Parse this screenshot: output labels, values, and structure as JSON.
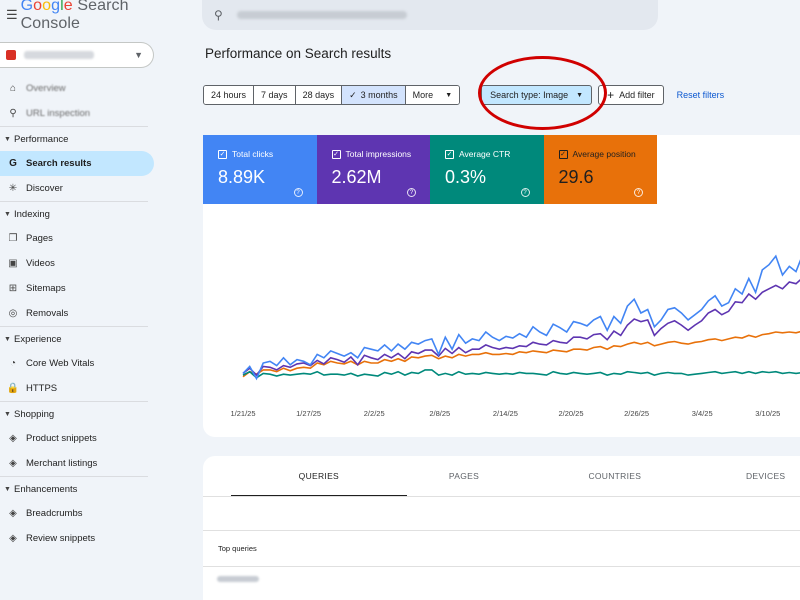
{
  "app": {
    "name_parts": [
      "G",
      "o",
      "o",
      "g",
      "l",
      "e"
    ],
    "name_rest": " Search Console",
    "brand_colors": [
      "#4285f4",
      "#ea4335",
      "#fbbc05",
      "#4285f4",
      "#34a853",
      "#ea4335"
    ]
  },
  "sidebar": {
    "items_top": [
      {
        "label": "Overview",
        "icon": "home-icon"
      },
      {
        "label": "URL inspection",
        "icon": "search-icon"
      }
    ],
    "sections": [
      {
        "label": "Performance",
        "items": [
          {
            "label": "Search results",
            "icon": "google-g-icon",
            "active": true
          },
          {
            "label": "Discover",
            "icon": "asterisk-icon"
          }
        ]
      },
      {
        "label": "Indexing",
        "items": [
          {
            "label": "Pages",
            "icon": "pages-icon"
          },
          {
            "label": "Videos",
            "icon": "video-icon"
          },
          {
            "label": "Sitemaps",
            "icon": "sitemap-icon"
          },
          {
            "label": "Removals",
            "icon": "eye-off-icon"
          }
        ]
      },
      {
        "label": "Experience",
        "items": [
          {
            "label": "Core Web Vitals",
            "icon": "gauge-icon"
          },
          {
            "label": "HTTPS",
            "icon": "lock-icon"
          }
        ]
      },
      {
        "label": "Shopping",
        "items": [
          {
            "label": "Product snippets",
            "icon": "diamond-icon"
          },
          {
            "label": "Merchant listings",
            "icon": "diamond-icon"
          }
        ]
      },
      {
        "label": "Enhancements",
        "items": [
          {
            "label": "Breadcrumbs",
            "icon": "diamond-icon"
          },
          {
            "label": "Review snippets",
            "icon": "diamond-icon"
          }
        ]
      }
    ]
  },
  "page": {
    "title": "Performance on Search results"
  },
  "filters": {
    "ranges": [
      "24 hours",
      "7 days",
      "28 days",
      "3 months"
    ],
    "selected_range": "3 months",
    "more": "More",
    "search_type": "Search type: Image",
    "add_filter": "Add filter",
    "reset": "Reset filters"
  },
  "metrics": [
    {
      "label": "Total clicks",
      "value": "8.89K",
      "color": "#4285f4"
    },
    {
      "label": "Total impressions",
      "value": "2.62M",
      "color": "#5e35b1"
    },
    {
      "label": "Average CTR",
      "value": "0.3%",
      "color": "#00897b"
    },
    {
      "label": "Average position",
      "value": "29.6",
      "color": "#e8710a"
    }
  ],
  "chart_data": {
    "type": "line",
    "x_ticks": [
      "1/21/25",
      "1/27/25",
      "2/2/25",
      "2/8/25",
      "2/14/25",
      "2/20/25",
      "2/26/25",
      "3/4/25",
      "3/10/25"
    ],
    "grid": false,
    "series": [
      {
        "name": "Total clicks",
        "color": "#4285f4",
        "values": [
          10,
          18,
          4,
          22,
          24,
          19,
          28,
          20,
          26,
          24,
          20,
          32,
          28,
          36,
          33,
          30,
          34,
          28,
          40,
          38,
          36,
          43,
          36,
          44,
          38,
          46,
          44,
          48,
          50,
          32,
          52,
          38,
          55,
          45,
          50,
          48,
          58,
          52,
          48,
          53,
          51,
          56,
          52,
          64,
          58,
          54,
          67,
          63,
          58,
          70,
          68,
          65,
          72,
          76,
          60,
          76,
          68,
          88,
          96,
          80,
          84,
          64,
          72,
          84,
          86,
          80,
          72,
          78,
          84,
          94,
          100,
          88,
          92,
          108,
          102,
          120,
          104,
          130,
          136,
          146,
          124,
          134,
          128,
          148,
          158,
          146,
          138
        ]
      },
      {
        "name": "Total impressions",
        "color": "#5e35b1",
        "values": [
          10,
          16,
          8,
          18,
          17,
          14,
          19,
          17,
          21,
          22,
          19,
          25,
          21,
          28,
          26,
          23,
          29,
          20,
          31,
          28,
          26,
          32,
          28,
          33,
          27,
          35,
          33,
          37,
          37,
          30,
          39,
          33,
          40,
          34,
          38,
          38,
          43,
          40,
          38,
          40,
          39,
          42,
          41,
          46,
          44,
          43,
          48,
          46,
          45,
          52,
          52,
          50,
          55,
          56,
          49,
          59,
          54,
          66,
          73,
          70,
          72,
          54,
          62,
          68,
          71,
          66,
          60,
          66,
          71,
          80,
          84,
          78,
          82,
          93,
          92,
          102,
          96,
          104,
          108,
          112,
          108,
          116,
          114,
          121,
          122,
          116,
          112
        ]
      },
      {
        "name": "Average CTR",
        "color": "#00897b",
        "values": [
          8,
          12,
          5,
          10,
          9,
          7,
          9,
          8,
          9,
          10,
          9,
          12,
          8,
          9,
          9,
          8,
          10,
          7,
          9,
          8,
          7,
          11,
          9,
          12,
          8,
          11,
          10,
          14,
          14,
          8,
          10,
          8,
          12,
          9,
          10,
          9,
          11,
          10,
          9,
          10,
          9,
          11,
          10,
          10,
          9,
          8,
          12,
          10,
          9,
          11,
          10,
          9,
          10,
          11,
          8,
          10,
          9,
          12,
          11,
          10,
          11,
          8,
          10,
          11,
          10,
          10,
          8,
          9,
          10,
          11,
          12,
          10,
          11,
          12,
          10,
          12,
          10,
          12,
          11,
          12,
          10,
          11,
          10,
          11,
          10,
          10,
          10
        ]
      },
      {
        "name": "Average position",
        "color": "#e8710a",
        "values": [
          6,
          12,
          9,
          14,
          14,
          12,
          16,
          13,
          16,
          17,
          16,
          22,
          20,
          24,
          22,
          21,
          24,
          20,
          24,
          22,
          22,
          26,
          24,
          27,
          24,
          29,
          28,
          30,
          31,
          27,
          30,
          28,
          32,
          30,
          32,
          32,
          34,
          32,
          32,
          33,
          32,
          35,
          34,
          36,
          35,
          34,
          37,
          36,
          35,
          38,
          38,
          37,
          40,
          41,
          38,
          42,
          41,
          44,
          46,
          44,
          46,
          42,
          44,
          46,
          47,
          45,
          44,
          46,
          47,
          49,
          50,
          48,
          50,
          52,
          51,
          54,
          52,
          55,
          56,
          58,
          57,
          58,
          57,
          59,
          60,
          59,
          58
        ]
      }
    ],
    "ylim": [
      0,
      160
    ]
  },
  "tabs": [
    "QUERIES",
    "PAGES",
    "COUNTRIES",
    "DEVICES"
  ],
  "table": {
    "header": "Top queries"
  }
}
